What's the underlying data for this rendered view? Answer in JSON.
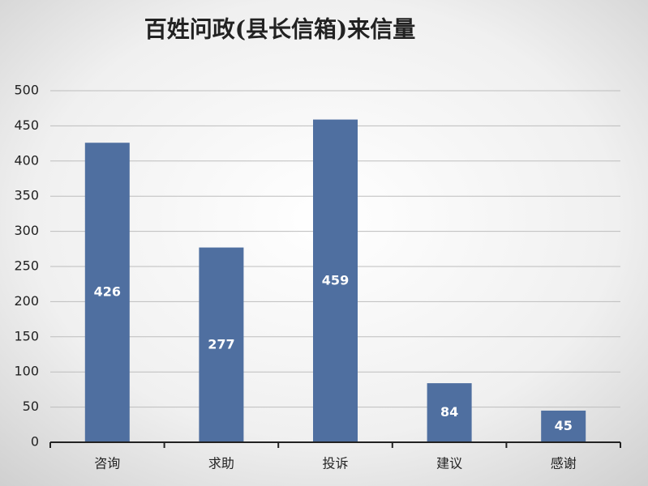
{
  "chart_data": {
    "type": "bar",
    "title": "百姓问政(县长信箱)来信量",
    "categories": [
      "咨询",
      "求助",
      "投诉",
      "建议",
      "感谢"
    ],
    "values": [
      426,
      277,
      459,
      84,
      45
    ],
    "color": "#4f6fa0",
    "ylim": [
      0,
      500
    ],
    "yticks": [
      0,
      50,
      100,
      150,
      200,
      250,
      300,
      350,
      400,
      450,
      500
    ],
    "grid": true
  }
}
